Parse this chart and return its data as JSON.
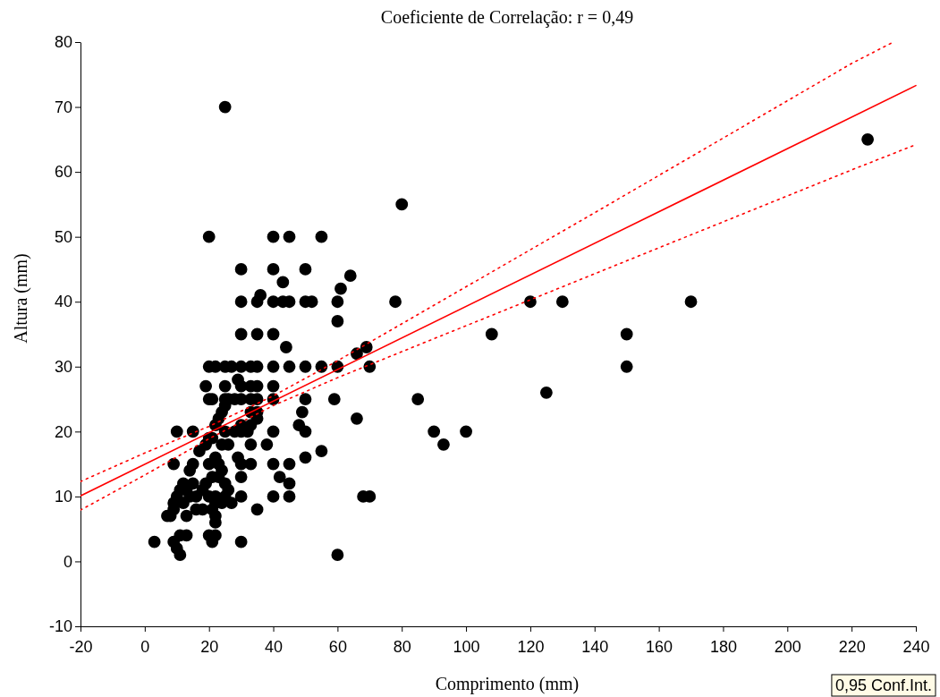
{
  "chart_data": {
    "type": "scatter",
    "title": "Coeficiente de Correlação: r = 0,49",
    "xlabel": "Comprimento (mm)",
    "ylabel": "Altura (mm)",
    "xlim": [
      -20,
      240
    ],
    "xticks": [
      -20,
      0,
      20,
      40,
      60,
      80,
      100,
      120,
      140,
      160,
      180,
      200,
      220,
      240
    ],
    "ylim": [
      -10,
      80
    ],
    "yticks": [
      -10,
      0,
      10,
      20,
      30,
      40,
      50,
      60,
      70,
      80
    ],
    "grid": false,
    "marker": "circle",
    "annotations": [
      "0,95 Conf.Int."
    ],
    "series": [
      {
        "type": "scatter",
        "color": "#000000",
        "x": [
          3,
          25,
          20,
          40,
          45,
          55,
          80,
          225,
          30,
          40,
          50,
          43,
          64,
          36,
          30,
          35,
          40,
          43,
          45,
          50,
          52,
          61,
          60,
          78,
          120,
          130,
          170,
          60,
          44,
          30,
          35,
          40,
          108,
          150,
          69,
          66,
          20,
          22,
          25,
          27,
          30,
          33,
          35,
          40,
          45,
          50,
          55,
          60,
          70,
          150,
          29,
          19,
          25,
          30,
          33,
          35,
          40,
          125,
          20,
          21,
          25,
          28,
          30,
          33,
          35,
          40,
          50,
          59,
          85,
          49,
          33,
          35,
          66,
          35,
          48,
          30,
          33,
          10,
          15,
          25,
          28,
          30,
          32,
          40,
          50,
          90,
          100,
          93,
          38,
          33,
          26,
          50,
          55,
          29,
          9,
          20,
          23,
          30,
          33,
          40,
          45,
          15,
          42,
          30,
          45,
          40,
          45,
          30,
          27,
          35,
          68,
          70,
          60,
          30,
          21,
          20,
          22,
          13,
          11,
          11,
          10,
          9,
          7,
          8,
          13,
          22,
          22,
          16,
          18,
          9,
          10,
          11,
          12,
          13,
          14,
          16,
          18,
          20,
          22,
          25,
          19,
          17,
          21,
          23,
          21,
          22,
          23,
          24,
          25,
          26,
          20,
          19,
          24,
          22,
          24,
          25,
          26,
          24,
          22,
          21,
          9,
          14,
          15,
          12
        ],
        "values": [
          3,
          70,
          50,
          50,
          50,
          50,
          55,
          65,
          45,
          45,
          45,
          43,
          44,
          41,
          40,
          40,
          40,
          40,
          40,
          40,
          40,
          42,
          40,
          40,
          40,
          40,
          40,
          37,
          33,
          35,
          35,
          35,
          35,
          35,
          33,
          32,
          30,
          30,
          30,
          30,
          30,
          30,
          30,
          30,
          30,
          30,
          30,
          30,
          30,
          30,
          28,
          27,
          27,
          27,
          27,
          27,
          27,
          26,
          25,
          25,
          25,
          25,
          25,
          25,
          25,
          25,
          25,
          25,
          25,
          23,
          23,
          23,
          22,
          22,
          21,
          21,
          21,
          20,
          20,
          20,
          20,
          20,
          20,
          20,
          20,
          20,
          20,
          18,
          18,
          18,
          18,
          16,
          17,
          16,
          15,
          15,
          15,
          15,
          15,
          15,
          15,
          15,
          13,
          13,
          12,
          10,
          10,
          10,
          9,
          8,
          10,
          10,
          1,
          3,
          3,
          4,
          4,
          4,
          4,
          1,
          2,
          3,
          7,
          7,
          7,
          6,
          7,
          8,
          8,
          9,
          10,
          11,
          12,
          11,
          10,
          10,
          11,
          10,
          10,
          10,
          12,
          17,
          13,
          13,
          19,
          21,
          22,
          23,
          24,
          25,
          19,
          18,
          18,
          16,
          14,
          12,
          11,
          9,
          9,
          8,
          8,
          14,
          12,
          9
        ]
      },
      {
        "type": "line",
        "color": "#ff0000",
        "line_style": "solid",
        "marker": "none",
        "x": [
          -20,
          240
        ],
        "values": [
          10.1,
          73.3
        ]
      },
      {
        "type": "line",
        "color": "#ff0000",
        "line_style": "dotted",
        "marker": "none",
        "x": [
          -20,
          0,
          20,
          40,
          60,
          100,
          140,
          180,
          220,
          233
        ],
        "values": [
          12.3,
          16.7,
          20.8,
          25.5,
          30.9,
          42.3,
          53.7,
          65.2,
          76.7,
          80
        ]
      },
      {
        "type": "line",
        "color": "#ff0000",
        "line_style": "dotted",
        "marker": "none",
        "x": [
          -20,
          0,
          20,
          40,
          60,
          100,
          140,
          180,
          220,
          240
        ],
        "values": [
          7.9,
          13.3,
          18.9,
          24.0,
          28.3,
          36.3,
          44.3,
          52.3,
          60.3,
          64.2
        ]
      }
    ]
  }
}
